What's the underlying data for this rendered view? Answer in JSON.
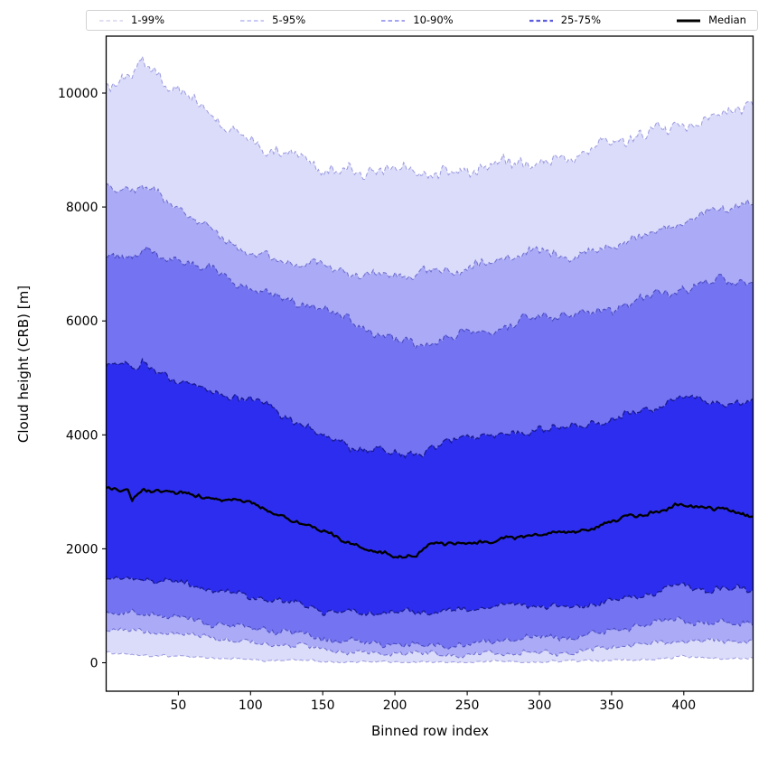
{
  "chart_data": {
    "type": "area",
    "subtype": "percentile-fan-chart",
    "title": "",
    "xlabel": "Binned row index",
    "ylabel": "Cloud height (CRB) [m]",
    "xlim": [
      0,
      448
    ],
    "ylim": [
      -500,
      11000
    ],
    "xticks": [
      50,
      100,
      150,
      200,
      250,
      300,
      350,
      400
    ],
    "yticks": [
      0,
      2000,
      4000,
      6000,
      8000,
      10000
    ],
    "grid": false,
    "legend_position": "top",
    "control_x": [
      1,
      15,
      18,
      25,
      50,
      75,
      100,
      125,
      150,
      175,
      200,
      215,
      225,
      250,
      275,
      300,
      325,
      350,
      375,
      395,
      410,
      430,
      445
    ],
    "series": [
      {
        "name": "p1",
        "percentile": 1,
        "values": [
          160,
          150,
          145,
          140,
          110,
          80,
          55,
          40,
          25,
          15,
          10,
          10,
          10,
          10,
          15,
          20,
          30,
          45,
          60,
          95,
          85,
          80,
          80
        ]
      },
      {
        "name": "p5",
        "percentile": 5,
        "values": [
          600,
          590,
          580,
          560,
          490,
          430,
          370,
          300,
          240,
          190,
          150,
          150,
          150,
          160,
          160,
          170,
          200,
          260,
          320,
          410,
          380,
          370,
          365
        ]
      },
      {
        "name": "p10",
        "percentile": 10,
        "values": [
          880,
          870,
          860,
          850,
          780,
          700,
          620,
          520,
          430,
          370,
          300,
          300,
          310,
          330,
          380,
          440,
          470,
          560,
          650,
          790,
          720,
          690,
          680
        ]
      },
      {
        "name": "p25",
        "percentile": 25,
        "values": [
          1480,
          1470,
          1450,
          1450,
          1380,
          1300,
          1180,
          1050,
          930,
          880,
          870,
          880,
          900,
          950,
          990,
          1000,
          990,
          1080,
          1180,
          1400,
          1300,
          1290,
          1270
        ]
      },
      {
        "name": "median",
        "percentile": 50,
        "values": [
          3050,
          3020,
          2840,
          3040,
          2990,
          2900,
          2790,
          2550,
          2310,
          2030,
          1880,
          1890,
          2060,
          2110,
          2160,
          2250,
          2300,
          2480,
          2600,
          2790,
          2720,
          2700,
          2550
        ]
      },
      {
        "name": "p75",
        "percentile": 75,
        "values": [
          5290,
          5260,
          5110,
          5240,
          4920,
          4770,
          4620,
          4320,
          4020,
          3730,
          3670,
          3690,
          3780,
          3970,
          3985,
          4140,
          4100,
          4290,
          4450,
          4620,
          4600,
          4540,
          4600
        ]
      },
      {
        "name": "p90",
        "percentile": 90,
        "values": [
          7160,
          7200,
          7150,
          7270,
          7060,
          6820,
          6590,
          6380,
          6190,
          5920,
          5680,
          5580,
          5600,
          5760,
          5920,
          6080,
          6060,
          6240,
          6400,
          6520,
          6600,
          6750,
          6710
        ]
      },
      {
        "name": "p95",
        "percentile": 95,
        "values": [
          8300,
          8350,
          8300,
          8400,
          8000,
          7500,
          7200,
          7050,
          6950,
          6850,
          6800,
          6780,
          6850,
          6950,
          7100,
          7200,
          7150,
          7300,
          7500,
          7750,
          7850,
          8000,
          8050
        ]
      },
      {
        "name": "p99",
        "percentile": 99,
        "values": [
          10200,
          10350,
          10300,
          10550,
          10000,
          9600,
          9150,
          8900,
          8700,
          8600,
          8650,
          8600,
          8600,
          8650,
          8750,
          8800,
          8900,
          9100,
          9300,
          9500,
          9400,
          9700,
          9750
        ]
      }
    ],
    "bands": [
      {
        "label": "1-99%",
        "lower": "p1",
        "upper": "p99",
        "fill": "#dbdbfa",
        "edge": "#9a9ae0",
        "edge_width": 1.0,
        "dash": "4.5 2.8"
      },
      {
        "label": "5-95%",
        "lower": "p5",
        "upper": "p95",
        "fill": "#aaaaf6",
        "edge": "#6d6dd0",
        "edge_width": 1.0,
        "dash": "4.5 2.8"
      },
      {
        "label": "10-90%",
        "lower": "p10",
        "upper": "p90",
        "fill": "#7474f2",
        "edge": "#4a4ac0",
        "edge_width": 1.1,
        "dash": "4.5 2.8"
      },
      {
        "label": "25-75%",
        "lower": "p25",
        "upper": "p75",
        "fill": "#2d2df0",
        "edge": "#19198f",
        "edge_width": 1.3,
        "dash": "6 2.5"
      }
    ],
    "median_line": {
      "label": "Median",
      "color": "#000000",
      "width": 2.3
    }
  },
  "legend": {
    "entries": [
      {
        "label": "1-99%",
        "color": "#cdcde9",
        "dashed": true,
        "width": 1.3
      },
      {
        "label": "5-95%",
        "color": "#a9a9f0",
        "dashed": true,
        "width": 1.3
      },
      {
        "label": "10-90%",
        "color": "#8585f0",
        "dashed": true,
        "width": 1.5
      },
      {
        "label": "25-75%",
        "color": "#5c5ce0",
        "dashed": true,
        "width": 2.3
      },
      {
        "label": "Median",
        "color": "#000000",
        "dashed": false,
        "width": 3
      }
    ]
  },
  "colors": {
    "axis": "#000000",
    "background": "#ffffff",
    "tick_label": "#000000"
  }
}
